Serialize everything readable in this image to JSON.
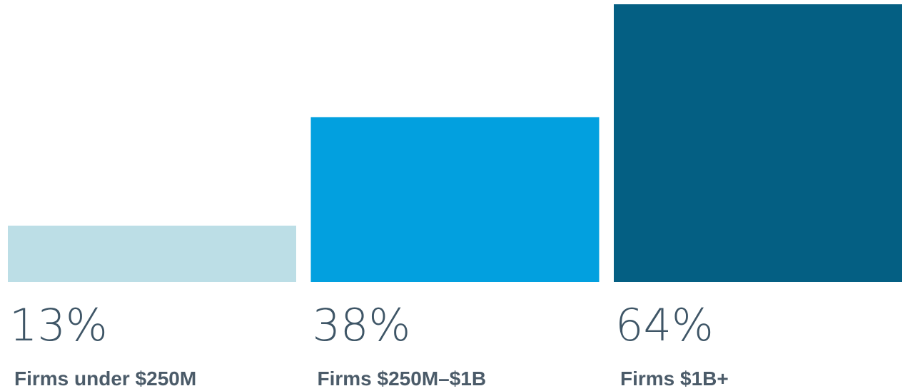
{
  "chart_data": {
    "type": "bar",
    "categories": [
      "Firms under $250M",
      "Firms $250M–$1B",
      "Firms $1B+"
    ],
    "values": [
      13,
      38,
      64
    ],
    "value_labels": [
      "13%",
      "38%",
      "64%"
    ],
    "colors": [
      "#bcdee6",
      "#02a0df",
      "#045f83"
    ],
    "ylim": [
      0,
      64
    ]
  }
}
